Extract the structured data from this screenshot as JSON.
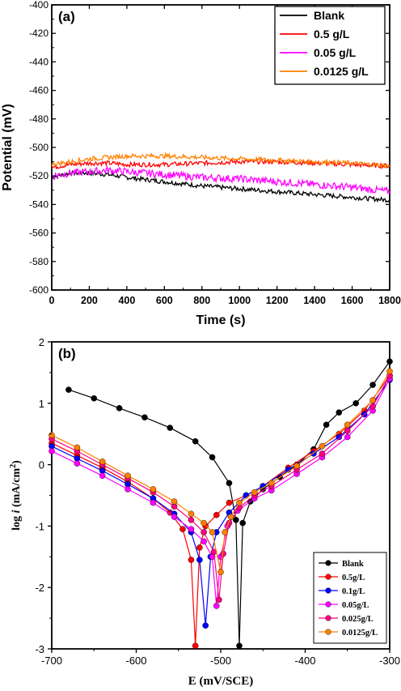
{
  "chart_data": [
    {
      "panel_label": "(a)",
      "type": "line",
      "xlabel": "Time (s)",
      "ylabel": "Potential (mV)",
      "xlim": [
        0,
        1800
      ],
      "ylim": [
        -600,
        -400
      ],
      "xticks": [
        0,
        200,
        400,
        600,
        800,
        1000,
        1200,
        1400,
        1600,
        1800
      ],
      "yticks": [
        -400,
        -420,
        -440,
        -460,
        -480,
        -500,
        -520,
        -540,
        -560,
        -580,
        -600
      ],
      "legend_position": "top-right",
      "series": [
        {
          "name": "Blank",
          "color": "#000000",
          "x": [
            0,
            100,
            200,
            300,
            400,
            600,
            800,
            1000,
            1200,
            1400,
            1600,
            1800
          ],
          "y": [
            -521,
            -518,
            -518,
            -519,
            -521,
            -524,
            -527,
            -529,
            -531,
            -533,
            -535,
            -537
          ]
        },
        {
          "name": "0.5 g/L",
          "color": "#ff0000",
          "x": [
            0,
            100,
            200,
            300,
            400,
            600,
            800,
            1000,
            1200,
            1400,
            1600,
            1800
          ],
          "y": [
            -514,
            -512,
            -511,
            -511,
            -512,
            -512,
            -511,
            -510,
            -510,
            -511,
            -512,
            -513
          ]
        },
        {
          "name": "0.05 g/L",
          "color": "#ff00ff",
          "x": [
            0,
            100,
            200,
            300,
            400,
            600,
            800,
            1000,
            1200,
            1400,
            1600,
            1800
          ],
          "y": [
            -520,
            -518,
            -517,
            -516,
            -517,
            -519,
            -521,
            -522,
            -524,
            -526,
            -528,
            -531
          ]
        },
        {
          "name": "0.0125 g/L",
          "color": "#ff8000",
          "x": [
            0,
            100,
            200,
            300,
            400,
            600,
            800,
            1000,
            1200,
            1400,
            1600,
            1800
          ],
          "y": [
            -512,
            -510,
            -508,
            -507,
            -506,
            -506,
            -507,
            -508,
            -509,
            -510,
            -511,
            -513
          ]
        }
      ]
    },
    {
      "panel_label": "(b)",
      "type": "line",
      "xlabel": "E (mV/SCE)",
      "ylabel": "log i (mA/cm2)",
      "xlim": [
        -700,
        -300
      ],
      "ylim": [
        -3,
        2
      ],
      "xticks": [
        -700,
        -600,
        -500,
        -400,
        -300
      ],
      "yticks": [
        2,
        1,
        0,
        -1,
        -2,
        -3
      ],
      "legend_position": "bottom-right",
      "series": [
        {
          "name": "Blank",
          "color": "#000000",
          "x": [
            -680,
            -650,
            -620,
            -590,
            -560,
            -530,
            -510,
            -490,
            -482,
            -478,
            -474,
            -465,
            -450,
            -430,
            -410,
            -390,
            -375,
            -360,
            -340,
            -320,
            -300
          ],
          "y": [
            1.22,
            1.08,
            0.92,
            0.77,
            0.6,
            0.38,
            0.12,
            -0.3,
            -0.9,
            -2.95,
            -0.95,
            -0.6,
            -0.4,
            -0.2,
            0.0,
            0.25,
            0.65,
            0.85,
            1.0,
            1.3,
            1.68
          ]
        },
        {
          "name": "0.5g/L",
          "color": "#ff0000",
          "x": [
            -700,
            -670,
            -640,
            -610,
            -580,
            -560,
            -545,
            -535,
            -530,
            -525,
            -518,
            -505,
            -490,
            -470,
            -450,
            -420,
            -390,
            -360,
            -330,
            -300
          ],
          "y": [
            0.35,
            0.15,
            -0.05,
            -0.28,
            -0.55,
            -0.78,
            -1.05,
            -1.55,
            -2.95,
            -1.35,
            -1.0,
            -0.82,
            -0.62,
            -0.5,
            -0.35,
            -0.05,
            0.22,
            0.5,
            0.88,
            1.45
          ]
        },
        {
          "name": "0.1g/L",
          "color": "#0000ff",
          "x": [
            -700,
            -670,
            -640,
            -610,
            -580,
            -555,
            -535,
            -525,
            -518,
            -512,
            -505,
            -490,
            -470,
            -450,
            -420,
            -390,
            -360,
            -330,
            -300
          ],
          "y": [
            0.3,
            0.1,
            -0.1,
            -0.32,
            -0.55,
            -0.8,
            -1.1,
            -1.55,
            -2.62,
            -1.5,
            -1.1,
            -0.78,
            -0.5,
            -0.35,
            -0.08,
            0.18,
            0.45,
            0.82,
            1.38
          ]
        },
        {
          "name": "0.05g/L",
          "color": "#ff00ff",
          "x": [
            -700,
            -670,
            -640,
            -610,
            -580,
            -555,
            -535,
            -520,
            -510,
            -505,
            -500,
            -492,
            -480,
            -460,
            -440,
            -410,
            -380,
            -350,
            -320,
            -300
          ],
          "y": [
            0.22,
            0.02,
            -0.18,
            -0.4,
            -0.62,
            -0.85,
            -1.05,
            -1.25,
            -1.5,
            -2.3,
            -1.5,
            -1.0,
            -0.75,
            -0.55,
            -0.42,
            -0.15,
            0.12,
            0.45,
            0.88,
            1.4
          ]
        },
        {
          "name": "0.025g/L",
          "color": "#ff0080",
          "x": [
            -700,
            -670,
            -640,
            -610,
            -580,
            -555,
            -535,
            -520,
            -508,
            -502,
            -497,
            -490,
            -478,
            -460,
            -440,
            -410,
            -380,
            -350,
            -320,
            -300
          ],
          "y": [
            0.42,
            0.22,
            0.0,
            -0.22,
            -0.45,
            -0.68,
            -0.9,
            -1.1,
            -1.42,
            -2.2,
            -1.45,
            -0.95,
            -0.7,
            -0.5,
            -0.35,
            -0.08,
            0.18,
            0.55,
            0.95,
            1.45
          ]
        },
        {
          "name": "0.0125g/L",
          "color": "#ff8000",
          "x": [
            -700,
            -670,
            -640,
            -610,
            -580,
            -555,
            -535,
            -520,
            -510,
            -500,
            -495,
            -488,
            -478,
            -460,
            -440,
            -410,
            -380,
            -350,
            -320,
            -300
          ],
          "y": [
            0.48,
            0.28,
            0.05,
            -0.18,
            -0.4,
            -0.6,
            -0.8,
            -0.95,
            -1.1,
            -1.75,
            -1.1,
            -0.85,
            -0.62,
            -0.45,
            -0.3,
            -0.02,
            0.3,
            0.65,
            1.05,
            1.52
          ]
        }
      ]
    }
  ]
}
